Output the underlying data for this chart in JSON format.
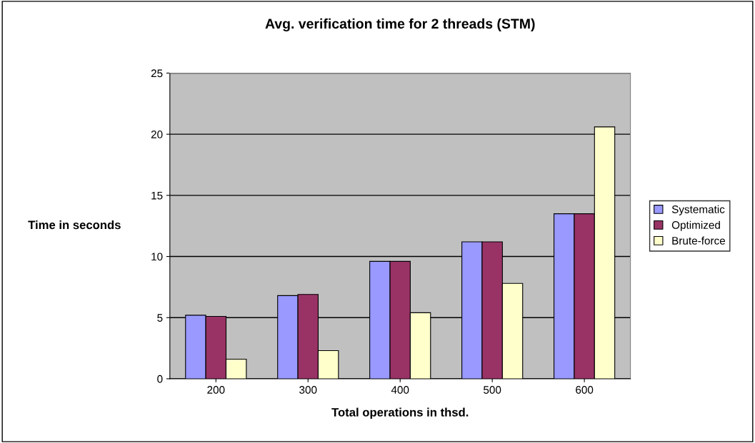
{
  "chart_data": {
    "type": "bar",
    "title": "Avg. verification time for 2 threads (STM)",
    "xlabel": "Total operations in thsd.",
    "ylabel": "Time in seconds",
    "categories": [
      "200",
      "300",
      "400",
      "500",
      "600"
    ],
    "series": [
      {
        "name": "Systematic",
        "color": "#9999ff",
        "values": [
          5.2,
          6.8,
          9.6,
          11.2,
          13.5
        ]
      },
      {
        "name": "Optimized",
        "color": "#993366",
        "values": [
          5.1,
          6.9,
          9.6,
          11.2,
          13.5
        ]
      },
      {
        "name": "Brute-force",
        "color": "#ffffcc",
        "values": [
          1.6,
          2.3,
          5.4,
          7.8,
          20.6
        ]
      }
    ],
    "ylim": [
      0,
      25
    ],
    "yticks": [
      0,
      5,
      10,
      15,
      20,
      25
    ],
    "grid": "y",
    "legend": "right"
  }
}
